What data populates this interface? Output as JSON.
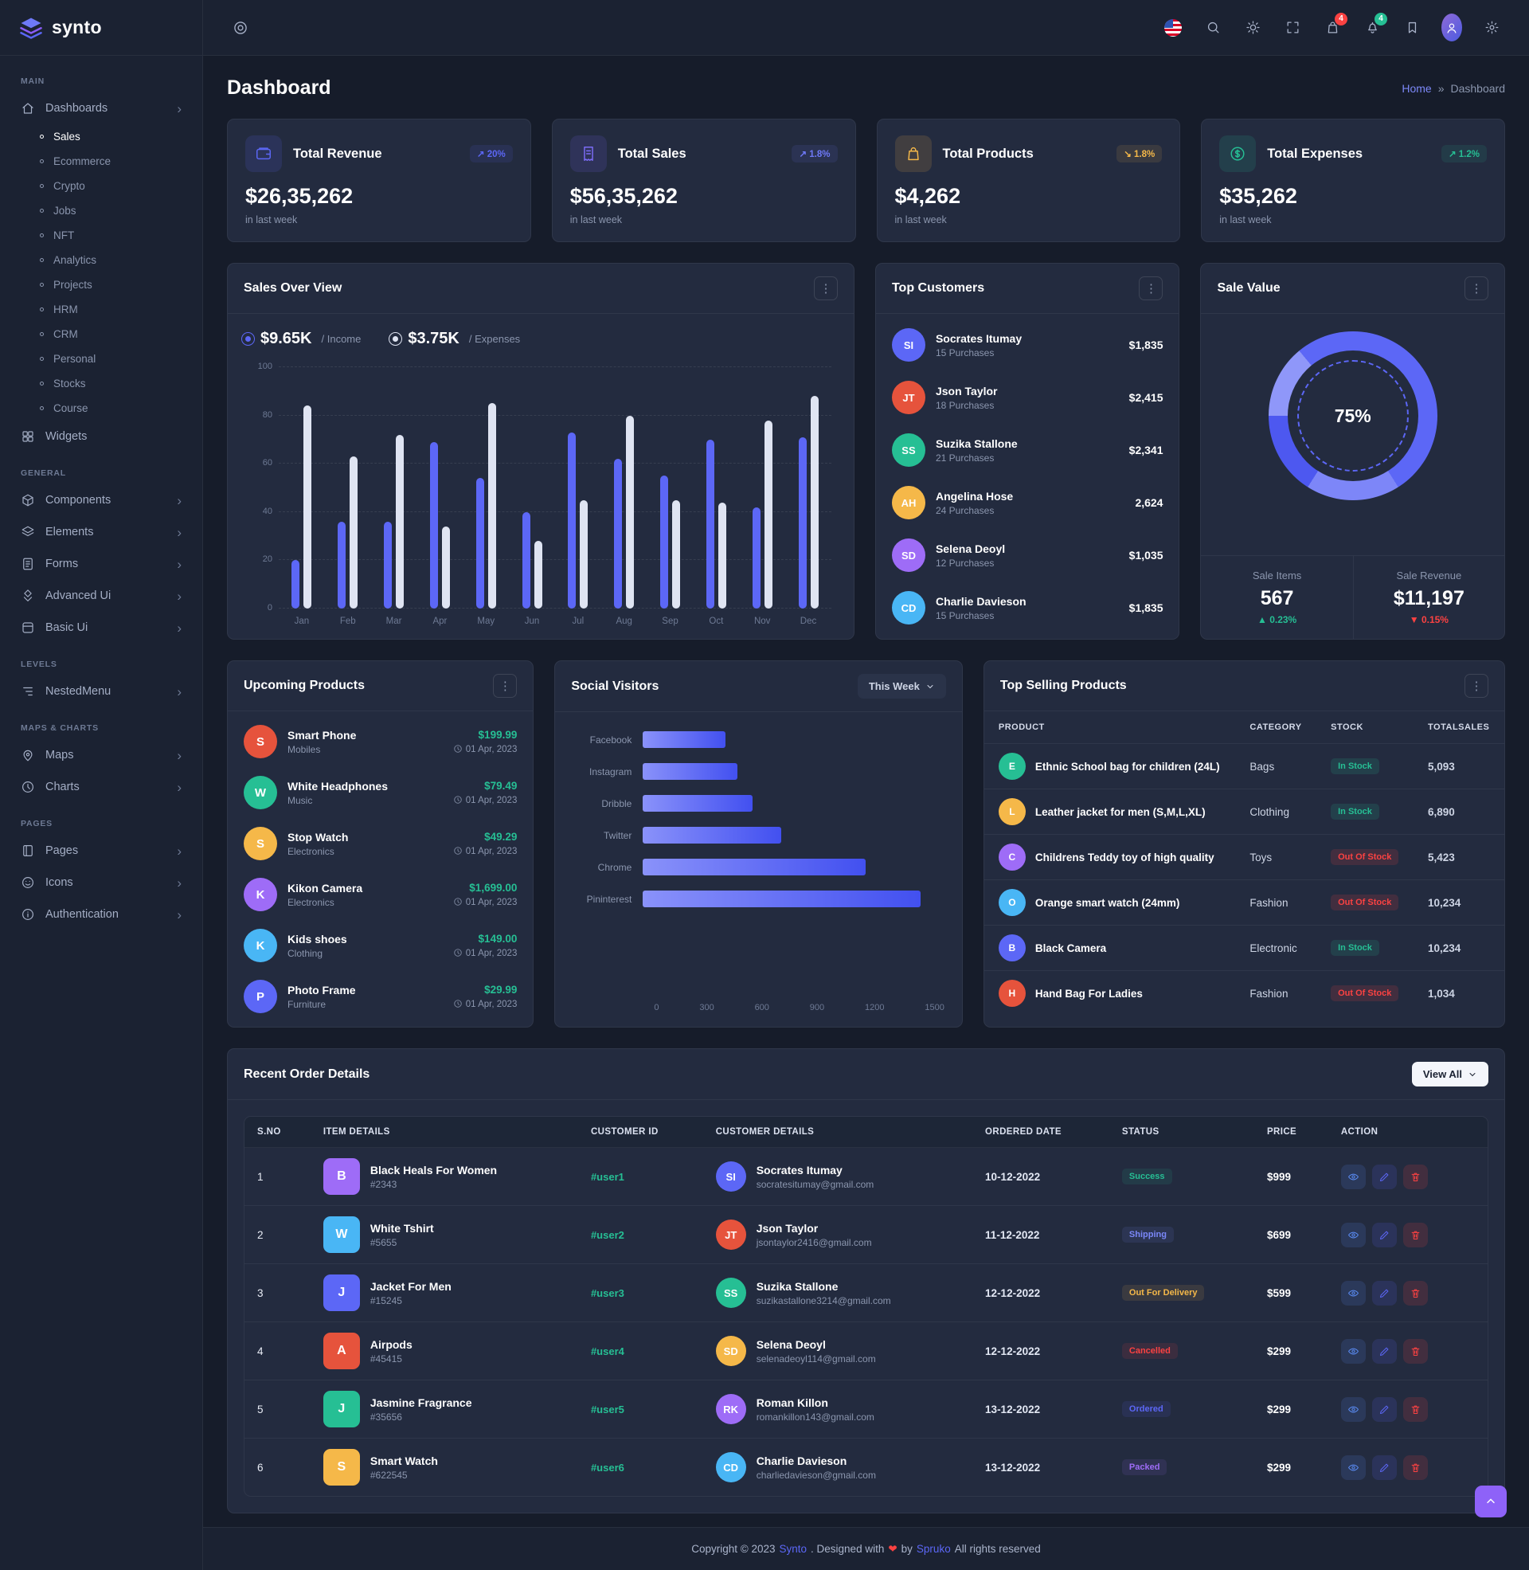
{
  "theme": {
    "primary": "#5c67f6",
    "success": "#26bf94",
    "danger": "#fb4242",
    "warning": "#f5b849",
    "purple": "#9e6cf7",
    "card_bg": "#232b3f",
    "body_bg": "#161c2a",
    "menu_bg": "#1b2232"
  },
  "brand": {
    "name": "synto"
  },
  "header": {
    "cart_badge": "4",
    "bell_badge": "4"
  },
  "page": {
    "title": "Dashboard",
    "breadcrumb_home": "Home",
    "breadcrumb_sep": "»",
    "breadcrumb_current": "Dashboard"
  },
  "sidebar": {
    "sections": [
      {
        "label": "MAIN",
        "items": [
          {
            "label": "Dashboards",
            "icon": "home-icon",
            "chevron": true,
            "children": [
              {
                "label": "Sales",
                "active": true
              },
              {
                "label": "Ecommerce"
              },
              {
                "label": "Crypto"
              },
              {
                "label": "Jobs"
              },
              {
                "label": "NFT"
              },
              {
                "label": "Analytics"
              },
              {
                "label": "Projects"
              },
              {
                "label": "HRM"
              },
              {
                "label": "CRM"
              },
              {
                "label": "Personal"
              },
              {
                "label": "Stocks"
              },
              {
                "label": "Course"
              }
            ]
          },
          {
            "label": "Widgets",
            "icon": "widgets-icon"
          }
        ]
      },
      {
        "label": "GENERAL",
        "items": [
          {
            "label": "Components",
            "icon": "components-icon",
            "chevron": true
          },
          {
            "label": "Elements",
            "icon": "elements-icon",
            "chevron": true
          },
          {
            "label": "Forms",
            "icon": "forms-icon",
            "chevron": true
          },
          {
            "label": "Advanced Ui",
            "icon": "advanced-ui-icon",
            "chevron": true
          },
          {
            "label": "Basic Ui",
            "icon": "basic-ui-icon",
            "chevron": true
          }
        ]
      },
      {
        "label": "LEVELS",
        "items": [
          {
            "label": "NestedMenu",
            "icon": "nested-menu-icon",
            "chevron": true
          }
        ]
      },
      {
        "label": "MAPS & CHARTS",
        "items": [
          {
            "label": "Maps",
            "icon": "maps-icon",
            "chevron": true
          },
          {
            "label": "Charts",
            "icon": "charts-icon",
            "chevron": true
          }
        ]
      },
      {
        "label": "PAGES",
        "items": [
          {
            "label": "Pages",
            "icon": "pages-icon",
            "chevron": true
          },
          {
            "label": "Icons",
            "icon": "icons-icon",
            "chevron": true
          },
          {
            "label": "Authentication",
            "icon": "authentication-icon",
            "chevron": true
          }
        ]
      }
    ]
  },
  "stats": [
    {
      "label": "Total Revenue",
      "value": "$26,35,262",
      "caption": "in last week",
      "badge": "20%",
      "trend": "up",
      "badge_color": "#5c67f6",
      "icon": "wallet-icon",
      "icon_color": "#5c67f6"
    },
    {
      "label": "Total Sales",
      "value": "$56,35,262",
      "caption": "in last week",
      "badge": "1.8%",
      "trend": "up",
      "badge_color": "#6e79f7",
      "icon": "receipt-icon",
      "icon_color": "#7b6cf6"
    },
    {
      "label": "Total Products",
      "value": "$4,262",
      "caption": "in last week",
      "badge": "1.8%",
      "trend": "down",
      "badge_color": "#f5b849",
      "icon": "bag-icon",
      "icon_color": "#f5b849"
    },
    {
      "label": "Total Expenses",
      "value": "$35,262",
      "caption": "in last week",
      "badge": "1.2%",
      "trend": "up",
      "badge_color": "#26bf94",
      "icon": "dollar-icon",
      "icon_color": "#26bf94"
    }
  ],
  "sales_card": {
    "title": "Sales Over View",
    "legend": [
      {
        "value": "$9.65K",
        "label": "/ Income",
        "color": "#5c67f6"
      },
      {
        "value": "$3.75K",
        "label": "/ Expenses",
        "color": "#dfe4f2"
      }
    ]
  },
  "top_customers": {
    "title": "Top Customers",
    "items": [
      {
        "name": "Socrates Itumay",
        "meta": "15 Purchases",
        "amount": "$1,835"
      },
      {
        "name": "Json Taylor",
        "meta": "18 Purchases",
        "amount": "$2,415"
      },
      {
        "name": "Suzika Stallone",
        "meta": "21 Purchases",
        "amount": "$2,341"
      },
      {
        "name": "Angelina Hose",
        "meta": "24 Purchases",
        "amount": "2,624"
      },
      {
        "name": "Selena Deoyl",
        "meta": "12 Purchases",
        "amount": "$1,035"
      },
      {
        "name": "Charlie Davieson",
        "meta": "15 Purchases",
        "amount": "$1,835"
      }
    ]
  },
  "sale_value": {
    "title": "Sale Value",
    "percent": "75%",
    "items": [
      {
        "label": "Sale Items",
        "value": "567",
        "delta": "0.23%",
        "dir": "up"
      },
      {
        "label": "Sale Revenue",
        "value": "$11,197",
        "delta": "0.15%",
        "dir": "down"
      }
    ]
  },
  "upcoming": {
    "title": "Upcoming Products",
    "items": [
      {
        "name": "Smart Phone",
        "category": "Mobiles",
        "price": "$199.99",
        "date": "01 Apr, 2023"
      },
      {
        "name": "White Headphones",
        "category": "Music",
        "price": "$79.49",
        "date": "01 Apr, 2023"
      },
      {
        "name": "Stop Watch",
        "category": "Electronics",
        "price": "$49.29",
        "date": "01 Apr, 2023"
      },
      {
        "name": "Kikon Camera",
        "category": "Electronics",
        "price": "$1,699.00",
        "date": "01 Apr, 2023"
      },
      {
        "name": "Kids shoes",
        "category": "Clothing",
        "price": "$149.00",
        "date": "01 Apr, 2023"
      },
      {
        "name": "Photo Frame",
        "category": "Furniture",
        "price": "$29.99",
        "date": "01 Apr, 2023"
      }
    ]
  },
  "social": {
    "title": "Social Visitors",
    "filter_label": "This Week"
  },
  "top_selling": {
    "title": "Top Selling Products",
    "headers": [
      "PRODUCT",
      "CATEGORY",
      "STOCK",
      "TOTALSALES"
    ],
    "rows": [
      {
        "product": "Ethnic School bag for children (24L)",
        "category": "Bags",
        "stock": "In Stock",
        "stock_state": "in",
        "sales": "5,093"
      },
      {
        "product": "Leather jacket for men (S,M,L,XL)",
        "category": "Clothing",
        "stock": "In Stock",
        "stock_state": "in",
        "sales": "6,890"
      },
      {
        "product": "Childrens Teddy toy of high quality",
        "category": "Toys",
        "stock": "Out Of Stock",
        "stock_state": "out",
        "sales": "5,423"
      },
      {
        "product": "Orange smart watch (24mm)",
        "category": "Fashion",
        "stock": "Out Of Stock",
        "stock_state": "out",
        "sales": "10,234"
      },
      {
        "product": "Black Camera",
        "category": "Electronic",
        "stock": "In Stock",
        "stock_state": "in",
        "sales": "10,234"
      },
      {
        "product": "Hand Bag For Ladies",
        "category": "Fashion",
        "stock": "Out Of Stock",
        "stock_state": "out",
        "sales": "1,034"
      }
    ]
  },
  "orders": {
    "title": "Recent Order Details",
    "view_all": "View All",
    "headers": [
      "S.NO",
      "ITEM DETAILS",
      "CUSTOMER ID",
      "CUSTOMER DETAILS",
      "ORDERED DATE",
      "STATUS",
      "PRICE",
      "ACTION"
    ],
    "rows": [
      {
        "sno": "1",
        "item": "Black Heals For Women",
        "item_id": "#2343",
        "customer_id": "#user1",
        "customer": "Socrates Itumay",
        "email": "socratesitumay@gmail.com",
        "date": "10-12-2022",
        "status": "Success",
        "status_color": "#26bf94",
        "price": "$999"
      },
      {
        "sno": "2",
        "item": "White Tshirt",
        "item_id": "#5655",
        "customer_id": "#user2",
        "customer": "Json Taylor",
        "email": "jsontaylor2416@gmail.com",
        "date": "11-12-2022",
        "status": "Shipping",
        "status_color": "#7a87f8",
        "price": "$699"
      },
      {
        "sno": "3",
        "item": "Jacket For Men",
        "item_id": "#15245",
        "customer_id": "#user3",
        "customer": "Suzika Stallone",
        "email": "suzikastallone3214@gmail.com",
        "date": "12-12-2022",
        "status": "Out For Delivery",
        "status_color": "#f5b849",
        "price": "$599"
      },
      {
        "sno": "4",
        "item": "Airpods",
        "item_id": "#45415",
        "customer_id": "#user4",
        "customer": "Selena Deoyl",
        "email": "selenadeoyl114@gmail.com",
        "date": "12-12-2022",
        "status": "Cancelled",
        "status_color": "#fb4242",
        "price": "$299"
      },
      {
        "sno": "5",
        "item": "Jasmine Fragrance",
        "item_id": "#35656",
        "customer_id": "#user5",
        "customer": "Roman Killon",
        "email": "romankillon143@gmail.com",
        "date": "13-12-2022",
        "status": "Ordered",
        "status_color": "#5c67f6",
        "price": "$299"
      },
      {
        "sno": "6",
        "item": "Smart Watch",
        "item_id": "#622545",
        "customer_id": "#user6",
        "customer": "Charlie Davieson",
        "email": "charliedavieson@gmail.com",
        "date": "13-12-2022",
        "status": "Packed",
        "status_color": "#9e6cf7",
        "price": "$299"
      }
    ]
  },
  "footer": {
    "text_prefix": "Copyright © 2023",
    "brand": "Synto",
    "middle": ". Designed with",
    "heart": "❤",
    "by": "by",
    "designer": "Spruko",
    "suffix": "All rights reserved"
  },
  "chart_data": [
    {
      "type": "bar",
      "title": "Sales Over View",
      "categories": [
        "Jan",
        "Feb",
        "Mar",
        "Apr",
        "May",
        "Jun",
        "Jul",
        "Aug",
        "Sep",
        "Oct",
        "Nov",
        "Dec"
      ],
      "series": [
        {
          "name": "Income",
          "total_label": "$9.65K",
          "color": "#5c67f6",
          "values": [
            20,
            36,
            36,
            69,
            54,
            40,
            73,
            62,
            55,
            70,
            42,
            71
          ]
        },
        {
          "name": "Expenses",
          "total_label": "$3.75K",
          "color": "#dfe4f2",
          "values": [
            84,
            63,
            72,
            34,
            85,
            28,
            45,
            80,
            45,
            44,
            78,
            88
          ]
        }
      ],
      "ylim": [
        0,
        100
      ],
      "yticks": [
        0,
        20,
        40,
        60,
        80,
        100
      ],
      "grid": true,
      "legend_position": "top"
    },
    {
      "type": "bar",
      "orientation": "horizontal",
      "title": "Social Visitors",
      "filter": "This Week",
      "categories": [
        "Facebook",
        "Instagram",
        "Dribble",
        "Twitter",
        "Chrome",
        "Pininterest"
      ],
      "values": [
        410,
        470,
        545,
        690,
        1110,
        1380
      ],
      "xlim": [
        0,
        1500
      ],
      "xticks": [
        0,
        300,
        600,
        900,
        1200,
        1500
      ],
      "bar_color_gradient": [
        "#8a92fa",
        "#4250f0"
      ]
    },
    {
      "type": "pie",
      "title": "Sale Value",
      "center_label": "75%",
      "slices": [
        {
          "label": "achieved",
          "value": 75,
          "color": "#5c67f6"
        },
        {
          "label": "remaining",
          "value": 25,
          "color": "#8f97f9"
        }
      ],
      "footer_stats": [
        {
          "label": "Sale Items",
          "value": "567",
          "delta": "+0.23%"
        },
        {
          "label": "Sale Revenue",
          "value": "$11,197",
          "delta": "-0.15%"
        }
      ]
    }
  ]
}
